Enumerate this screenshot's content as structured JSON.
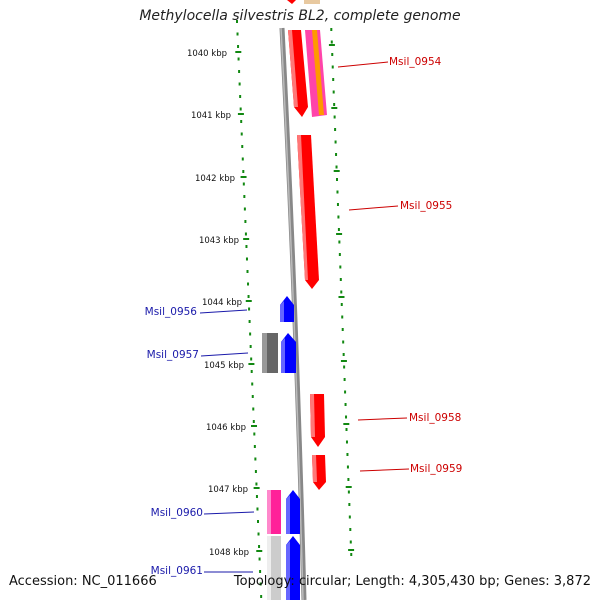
{
  "title": "Methylocella silvestris BL2, complete genome",
  "accession": "Accession: NC_011666",
  "summary": "Topology: circular; Length: 4,305,430 bp; Genes: 3,872",
  "colors": {
    "forward_gene": "#ff0000",
    "reverse_gene": "#0000ff",
    "forward_label": "#cc0000",
    "reverse_label": "#1a1aaa",
    "ruler": "#118811",
    "backbone": "#888888"
  },
  "ticks": [
    "1040 kbp",
    "1041 kbp",
    "1042 kbp",
    "1043 kbp",
    "1044 kbp",
    "1045 kbp",
    "1046 kbp",
    "1047 kbp",
    "1048 kbp"
  ],
  "genes": [
    {
      "label": "Msil_0954",
      "strand": "forward"
    },
    {
      "label": "Msil_0955",
      "strand": "forward"
    },
    {
      "label": "Msil_0956",
      "strand": "reverse"
    },
    {
      "label": "Msil_0957",
      "strand": "reverse"
    },
    {
      "label": "Msil_0958",
      "strand": "forward"
    },
    {
      "label": "Msil_0959",
      "strand": "forward"
    },
    {
      "label": "Msil_0960",
      "strand": "reverse"
    },
    {
      "label": "Msil_0961",
      "strand": "reverse"
    }
  ]
}
